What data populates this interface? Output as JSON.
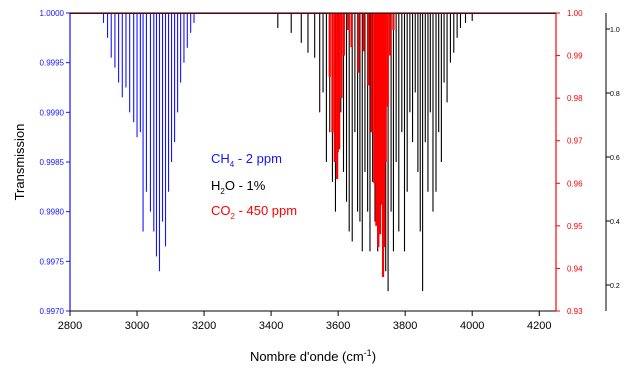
{
  "chart_data": {
    "type": "line",
    "xlabel": {
      "base": "Nombre d'onde (cm",
      "sup": "-1",
      "end": ")"
    },
    "ylabel_left": "Transmission",
    "xlim": [
      2800,
      4250
    ],
    "ylim_left": [
      0.997,
      1.0
    ],
    "ylim_right": [
      0.93,
      1.0
    ],
    "x_ticks": [
      "2800",
      "3000",
      "3200",
      "3400",
      "3600",
      "3800",
      "4000",
      "4200"
    ],
    "y_left_ticks": [
      "0.9970",
      "0.9975",
      "0.9980",
      "0.9985",
      "0.9990",
      "0.9995",
      "1.0000"
    ],
    "y_right_ticks": [
      "0.93",
      "0.94",
      "0.95",
      "0.96",
      "0.97",
      "0.98",
      "0.99",
      "1.00"
    ],
    "y_far_ticks": [
      "0.2",
      "0.4",
      "0.6",
      "0.8",
      "1.0"
    ],
    "legend": {
      "ch4": {
        "pre": "CH",
        "sub": "4",
        "post": " - 2 ppm",
        "color": "#1515ff"
      },
      "h2o": {
        "pre": "H",
        "sub": "2",
        "post": "O - 1%",
        "color": "#000000"
      },
      "co2": {
        "pre": "CO",
        "sub": "2",
        "post": " - 450 ppm",
        "color": "#ff0000"
      }
    },
    "series": [
      {
        "key": "ch4",
        "color": "#1515ff",
        "axis": "left",
        "lines": [
          [
            2900,
            0.9999
          ],
          [
            2912,
            0.99975
          ],
          [
            2923,
            0.99955
          ],
          [
            2934,
            0.99945
          ],
          [
            2945,
            0.9993
          ],
          [
            2956,
            0.99915
          ],
          [
            2967,
            0.99925
          ],
          [
            2978,
            0.999
          ],
          [
            2990,
            0.9989
          ],
          [
            3000,
            0.99875
          ],
          [
            3010,
            0.9988
          ],
          [
            3018,
            0.9978
          ],
          [
            3028,
            0.9982
          ],
          [
            3040,
            0.998
          ],
          [
            3050,
            0.9978
          ],
          [
            3058,
            0.99755
          ],
          [
            3067,
            0.9974
          ],
          [
            3076,
            0.9979
          ],
          [
            3085,
            0.99765
          ],
          [
            3094,
            0.9982
          ],
          [
            3103,
            0.9985
          ],
          [
            3112,
            0.9987
          ],
          [
            3121,
            0.999
          ],
          [
            3130,
            0.9993
          ],
          [
            3140,
            0.9995
          ],
          [
            3150,
            0.99965
          ],
          [
            3160,
            0.9998
          ],
          [
            3170,
            0.9999
          ]
        ]
      },
      {
        "key": "h2o",
        "color": "#000000",
        "axis": "left",
        "lines": [
          [
            3420,
            0.99985
          ],
          [
            3460,
            0.9998
          ],
          [
            3490,
            0.9997
          ],
          [
            3510,
            0.9996
          ],
          [
            3530,
            0.99955
          ],
          [
            3545,
            0.999
          ],
          [
            3555,
            0.9992
          ],
          [
            3565,
            0.9985
          ],
          [
            3575,
            0.9988
          ],
          [
            3583,
            0.9983
          ],
          [
            3592,
            0.998
          ],
          [
            3600,
            0.9986
          ],
          [
            3608,
            0.999
          ],
          [
            3616,
            0.9984
          ],
          [
            3625,
            0.9981
          ],
          [
            3633,
            0.9978
          ],
          [
            3642,
            0.9977
          ],
          [
            3650,
            0.9988
          ],
          [
            3658,
            0.998
          ],
          [
            3665,
            0.9979
          ],
          [
            3672,
            0.9976
          ],
          [
            3680,
            0.9984
          ],
          [
            3688,
            0.998
          ],
          [
            3695,
            0.9976
          ],
          [
            3703,
            0.9983
          ],
          [
            3710,
            0.9979
          ],
          [
            3718,
            0.9976
          ],
          [
            3725,
            0.9982
          ],
          [
            3733,
            0.99775
          ],
          [
            3742,
            0.9974
          ],
          [
            3749,
            0.9972
          ],
          [
            3758,
            0.998
          ],
          [
            3765,
            0.9976
          ],
          [
            3773,
            0.9985
          ],
          [
            3781,
            0.9978
          ],
          [
            3790,
            0.9988
          ],
          [
            3798,
            0.9976
          ],
          [
            3806,
            0.9982
          ],
          [
            3814,
            0.999
          ],
          [
            3822,
            0.9987
          ],
          [
            3830,
            0.9992
          ],
          [
            3838,
            0.9984
          ],
          [
            3845,
            0.9978
          ],
          [
            3852,
            0.9972
          ],
          [
            3860,
            0.9987
          ],
          [
            3868,
            0.9982
          ],
          [
            3875,
            0.999
          ],
          [
            3883,
            0.998
          ],
          [
            3892,
            0.9982
          ],
          [
            3900,
            0.9988
          ],
          [
            3908,
            0.9985
          ],
          [
            3916,
            0.9993
          ],
          [
            3925,
            0.9991
          ],
          [
            3935,
            0.9995
          ],
          [
            3945,
            0.9996
          ],
          [
            3955,
            0.99975
          ],
          [
            3965,
            0.99985
          ],
          [
            3980,
            0.9999
          ],
          [
            4000,
            0.99992
          ]
        ]
      },
      {
        "key": "co2",
        "color": "#ff0000",
        "axis": "right",
        "lines": [
          [
            3575,
            0.985
          ],
          [
            3583,
            0.972
          ],
          [
            3590,
            0.965
          ],
          [
            3597,
            0.961
          ],
          [
            3603,
            0.968
          ],
          [
            3610,
            0.98
          ],
          [
            3617,
            0.99
          ],
          [
            3630,
            0.996
          ],
          [
            3640,
            0.992
          ],
          [
            3660,
            0.986
          ],
          [
            3676,
            0.991
          ],
          [
            3690,
            0.983
          ],
          [
            3700,
            0.972
          ],
          [
            3708,
            0.96
          ],
          [
            3714,
            0.95
          ],
          [
            3720,
            0.945
          ],
          [
            3725,
            0.948
          ],
          [
            3730,
            0.955
          ],
          [
            3734,
            0.938
          ],
          [
            3738,
            0.945
          ],
          [
            3742,
            0.965
          ],
          [
            3748,
            0.978
          ],
          [
            3755,
            0.99
          ],
          [
            3765,
            0.996
          ]
        ]
      }
    ]
  }
}
